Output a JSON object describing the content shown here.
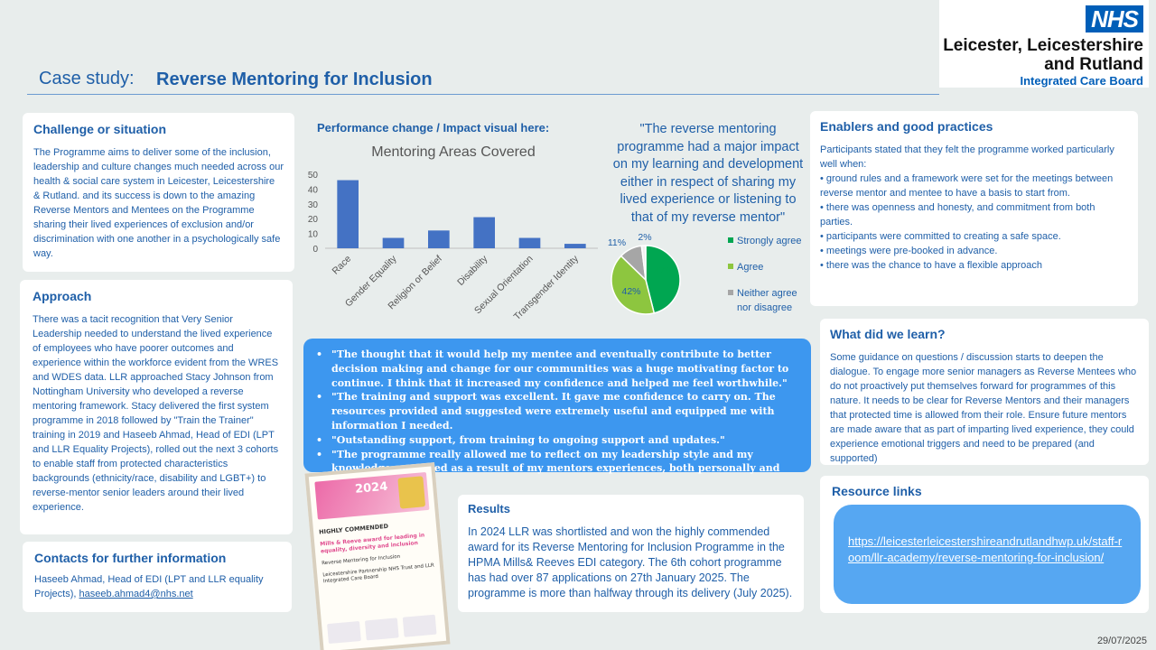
{
  "header": {
    "case_label": "Case study:",
    "title": "Reverse Mentoring for Inclusion",
    "nhs_logo_text": "NHS",
    "org_line1": "Leicester, Leicestershire",
    "org_line2": "and Rutland",
    "org_line3": "Integrated Care Board"
  },
  "challenge": {
    "heading": "Challenge or situation",
    "body": "The Programme aims to deliver some of the inclusion, leadership and culture changes much needed  across our health & social care system in Leicester, Leicestershire & Rutland. and its success is down to the amazing Reverse Mentors and Mentees  on the Programme sharing their lived experiences of exclusion and/or discrimination with one another in a psychologically safe way."
  },
  "approach": {
    "heading": "Approach",
    "body": "There was a tacit recognition that Very Senior Leadership needed  to understand the lived experience of employees who have poorer outcomes and experience within the workforce evident from the WRES and WDES data. LLR approached Stacy Johnson from Nottingham University who developed a reverse mentoring framework.  Stacy delivered the first system programme  in 2018 followed by \"Train the Trainer\" training in 2019 and Haseeb Ahmad,  Head of EDI (LPT and LLR Equality Projects), rolled out the next 3 cohorts to enable staff from protected characteristics backgrounds (ethnicity/race, disability and LGBT+)  to reverse-mentor  senior leaders around their lived experience."
  },
  "contacts": {
    "heading": "Contacts for further information",
    "text": "Haseeb Ahmad, Head of EDI (LPT and LLR equality Projects), ",
    "email": "haseeb.ahmad4@nhs.net"
  },
  "performance": {
    "heading": "Performance change / Impact visual here:"
  },
  "quote_main": "\"The reverse mentoring programme  had a major impact on my learning and development either in respect of sharing my lived experience or listening to that of my reverse mentor\"",
  "quotes": [
    "\"The thought that it would help my mentee and eventually contribute to better decision making and change for our communities was a huge motivating factor to continue. I think that it increased my confidence and helped me feel worthwhile.\"",
    "\"The training and support was excellent.  It gave me confidence to carry on.  The resources provided and suggested were extremely useful and equipped me with information I needed.",
    "\"Outstanding support, from training to ongoing support and updates.\"",
    "\"The programme really allowed me to reflect on my leadership style and my knowledge expanded as a result of my mentors experiences, both personally and professionally.\""
  ],
  "enablers": {
    "heading": "Enablers and good practices",
    "intro": "Participants stated that they  felt the programme worked particularly well when:",
    "items": [
      "• ground rules and a framework were  set for the meetings between  reverse mentor  and mentee  to have a basis to start from.",
      "• there was openness and honesty, and commitment  from both parties.",
      "• participants were committed  to creating a safe space.",
      " • meetings were pre-booked in advance.",
      "• there was the chance to have a flexible approach"
    ]
  },
  "learn": {
    "heading": "What did we learn?",
    "body": "Some guidance on questions / discussion starts to deepen the dialogue. To engage more senior managers as Reverse Mentees  who do not proactively put themselves forward for programmes of this nature.  It needs to be clear for Reverse Mentors and their managers that protected  time is allowed from their role.  Ensure future mentors are made aware that as part of imparting lived experience, they could experience emotional triggers and need to be prepared  (and supported)"
  },
  "resources": {
    "heading": "Resource links",
    "link": "https://leicesterleicestershireandrutlandhwp.uk/staff-room/llr-academy/reverse-mentoring-for-inclusion/"
  },
  "results": {
    "heading": "Results",
    "body": "In 2024 LLR was shortlisted and won the highly commended award for its Reverse Mentoring for Inclusion Programme in the HPMA Mills& Reeves EDI category. The 6th cohort programme has had over 87 applications on 27th January 2025.  The programme is more than halfway through its delivery (July 2025)."
  },
  "award_image": {
    "year": "2024",
    "highly_commended": "HIGHLY COMMENDED",
    "award_title": "Mills & Reeve award for leading in equality, diversity and inclusion",
    "project": "Reverse Mentoring for Inclusion",
    "org": "Leicestershire Partnership NHS Trust and LLR Integrated Care Board"
  },
  "date": "29/07/2025",
  "colors": {
    "accent": "#1f5fa8",
    "quotes_bg": "#3d97ef",
    "link_pill": "#56a7f2",
    "nhs_blue": "#005eb8"
  },
  "chart_data": [
    {
      "type": "bar",
      "title": "Mentoring Areas Covered",
      "categories": [
        "Race",
        "Gender Equality",
        "Religion or Belief",
        "Disability",
        "Sexual Orientation",
        "Transgender Identity"
      ],
      "values": [
        46,
        7,
        12,
        21,
        7,
        3
      ],
      "ylim": [
        0,
        50
      ],
      "yticks": [
        0,
        10,
        20,
        30,
        40,
        50
      ],
      "color": "#4472c4",
      "grid": false
    },
    {
      "type": "pie",
      "slices": [
        {
          "label": "Strongly agree",
          "value": 47,
          "color": "#00a651"
        },
        {
          "label": "Agree",
          "value": 42,
          "color": "#8dc63f"
        },
        {
          "label": "Neither agree nor disagree",
          "value": 11,
          "color": "#a6a6a6"
        },
        {
          "label": "",
          "value": 2,
          "color": "#f0f0f0"
        }
      ],
      "data_labels": [
        "47%",
        "42%",
        "11%",
        "2%"
      ],
      "legend": [
        "Strongly agree",
        "Agree",
        "Neither agree nor disagree"
      ],
      "legend_position": "right"
    }
  ]
}
